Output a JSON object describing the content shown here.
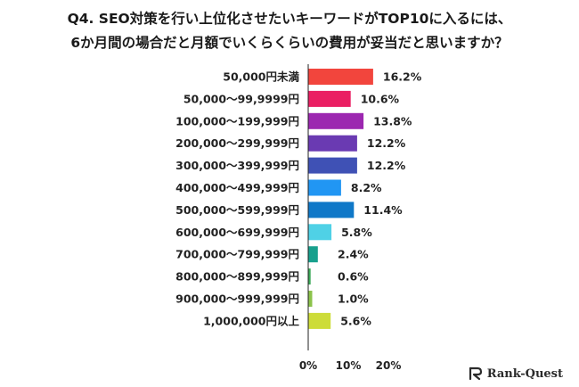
{
  "title_line1": "Q4. SEO対策を行い上位化させたいキーワードがTOP10に入るには、",
  "title_line2": "6か月間の場合だと月額でいくらくらいの費用が妥当だと思いますか？",
  "brand": "Rank-Quest",
  "chart_data": {
    "type": "bar",
    "orientation": "horizontal",
    "categories": [
      "50,000円未満",
      "50,000〜99,9999円",
      "100,000〜199,999円",
      "200,000〜299,999円",
      "300,000〜399,999円",
      "400,000〜499,999円",
      "500,000〜599,999円",
      "600,000〜699,999円",
      "700,000〜799,999円",
      "800,000〜899,999円",
      "900,000〜999,999円",
      "1,000,000円以上"
    ],
    "values": [
      16.2,
      10.6,
      13.8,
      12.2,
      12.2,
      8.2,
      11.4,
      5.8,
      2.4,
      0.6,
      1.0,
      5.6
    ],
    "value_labels": [
      "16.2%",
      "10.6%",
      "13.8%",
      "12.2%",
      "12.2%",
      "8.2%",
      "11.4%",
      "5.8%",
      "2.4%",
      "0.6%",
      "1.0%",
      "5.6%"
    ],
    "colors": [
      "#f2453d",
      "#ea1f63",
      "#9c27b0",
      "#6a3ab2",
      "#3f51b5",
      "#2196f3",
      "#0f78c8",
      "#4fd1e6",
      "#17a08d",
      "#3ca858",
      "#8cc34b",
      "#cddc39"
    ],
    "x_ticks": [
      0,
      10,
      20
    ],
    "x_tick_labels": [
      "0%",
      "10%",
      "20%"
    ],
    "xlim": [
      0,
      20
    ],
    "grid": false,
    "legend": "none"
  }
}
